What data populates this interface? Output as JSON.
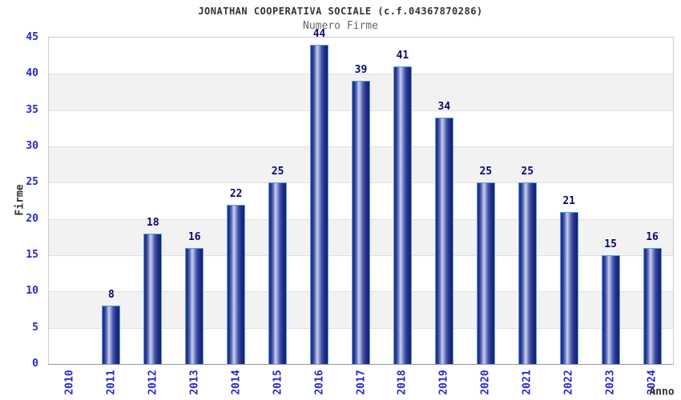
{
  "header": {
    "title": "JONATHAN COOPERATIVA SOCIALE (c.f.04367870286)",
    "subtitle": "Numero Firme"
  },
  "chart_data": {
    "type": "bar",
    "title": "JONATHAN COOPERATIVA SOCIALE (c.f.04367870286)",
    "subtitle": "Numero Firme",
    "xlabel": "Anno",
    "ylabel": "Firme",
    "categories": [
      "2010",
      "2011",
      "2012",
      "2013",
      "2014",
      "2015",
      "2016",
      "2017",
      "2018",
      "2019",
      "2020",
      "2021",
      "2022",
      "2023",
      "2024"
    ],
    "values": [
      0,
      8,
      18,
      16,
      22,
      25,
      44,
      39,
      41,
      34,
      25,
      25,
      21,
      15,
      16
    ],
    "ylim": [
      0,
      45
    ],
    "ytick_step": 5,
    "grid": "horizontal alternating bands every 5 units",
    "legend": "none",
    "colors": {
      "tick_label": "#2626d4",
      "value_label": "#0a0a6e",
      "band": "#f2f2f2",
      "grid_line": "#e0e0e0",
      "plot_border": "#cccccc",
      "axis_line": "#999999",
      "bar_dark": "#1e2c85",
      "bar_highlight": "#c6cfee",
      "bar_border": "#55a0e6",
      "title_color": "#333333",
      "subtitle_color": "#666666"
    }
  }
}
